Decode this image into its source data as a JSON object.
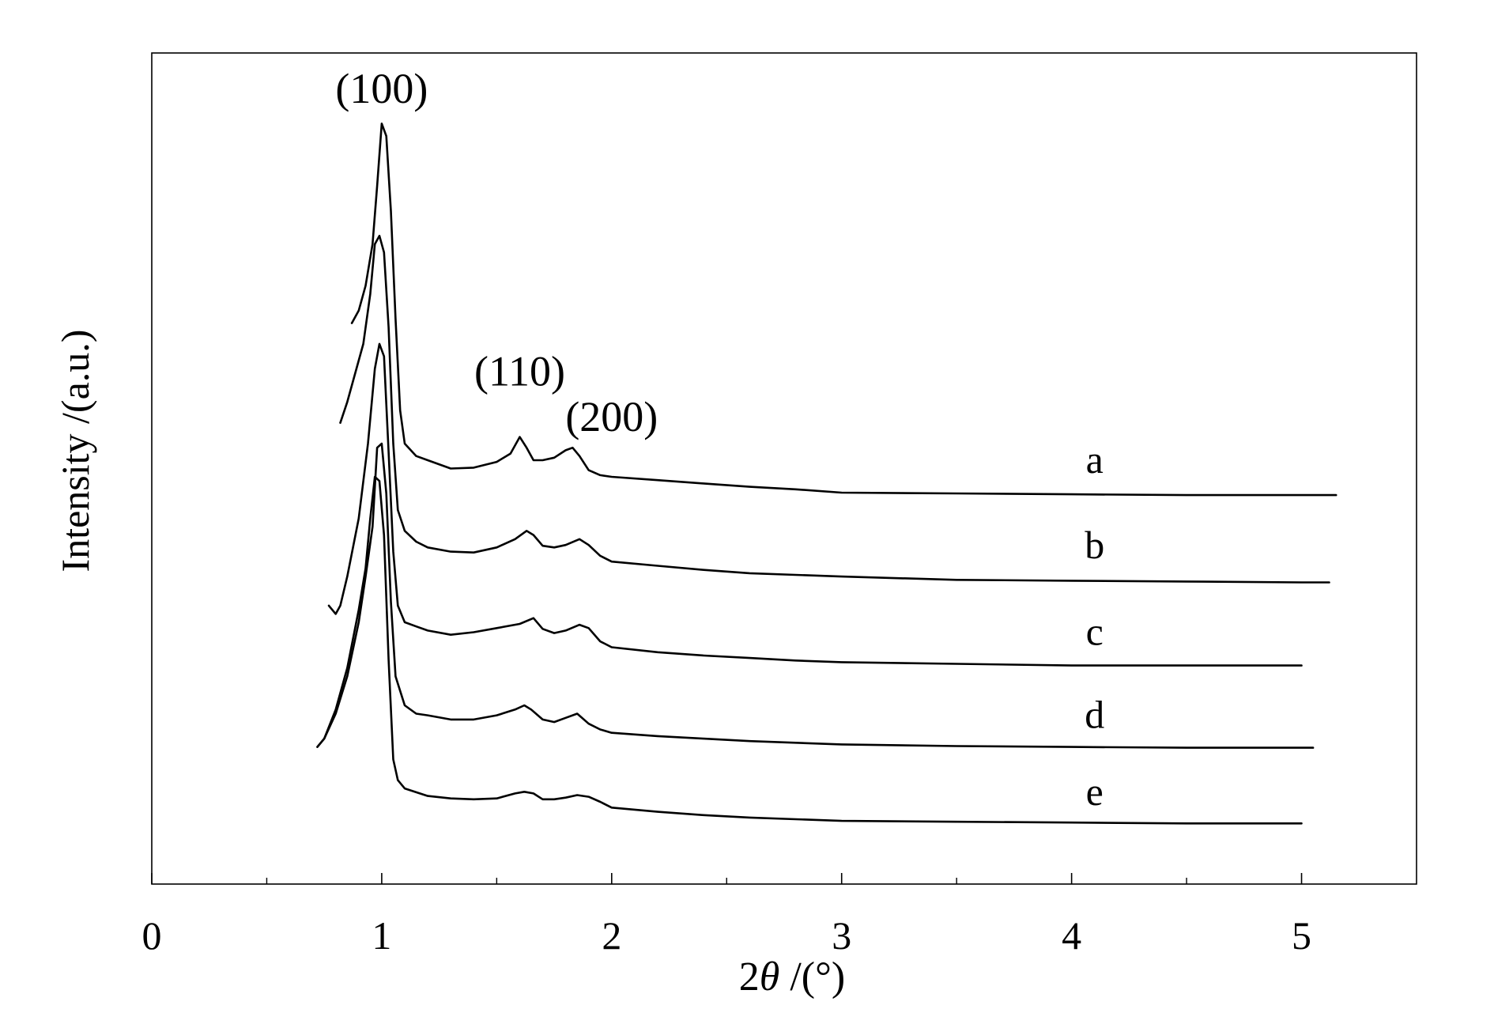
{
  "chart_data": {
    "type": "line",
    "title": "",
    "xlabel_prefix": "2",
    "xlabel_theta": "θ",
    "xlabel_suffix": " /(°)",
    "ylabel": "Intensity /(a.u.)",
    "xlim": [
      0,
      5.5
    ],
    "xticks": [
      0,
      1,
      2,
      3,
      4,
      5
    ],
    "xtick_labels": [
      "0",
      "1",
      "2",
      "3",
      "4",
      "5"
    ],
    "xminor_ticks": [
      0.5,
      1.5,
      2.5,
      3.5,
      4.5
    ],
    "ylim": [
      0,
      100
    ],
    "yticks_shown": false,
    "grid": false,
    "legend": "none",
    "annotations": [
      {
        "text": "(100)",
        "x": 1.0,
        "y": 94
      },
      {
        "text": "(110)",
        "x": 1.6,
        "y": 60
      },
      {
        "text": "(200)",
        "x": 2.0,
        "y": 54.5
      }
    ],
    "series": [
      {
        "name": "a",
        "x": [
          0.87,
          0.9,
          0.93,
          0.96,
          0.98,
          1.0,
          1.02,
          1.04,
          1.06,
          1.08,
          1.1,
          1.15,
          1.2,
          1.3,
          1.4,
          1.5,
          1.56,
          1.6,
          1.63,
          1.66,
          1.7,
          1.75,
          1.8,
          1.83,
          1.86,
          1.9,
          1.95,
          2.0,
          2.2,
          2.4,
          2.6,
          2.8,
          3.0,
          3.5,
          4.0,
          4.5,
          5.0,
          5.15
        ],
        "values": [
          67.5,
          69,
          72,
          77,
          84,
          91.5,
          90,
          81,
          68,
          57,
          53,
          51.5,
          51,
          50,
          50.1,
          50.8,
          51.8,
          53.8,
          52.5,
          51,
          51,
          51.3,
          52.2,
          52.5,
          51.5,
          49.8,
          49.2,
          49,
          48.6,
          48.2,
          47.8,
          47.5,
          47.1,
          47,
          46.9,
          46.8,
          46.8,
          46.8
        ]
      },
      {
        "name": "b",
        "x": [
          0.82,
          0.85,
          0.88,
          0.92,
          0.95,
          0.97,
          0.99,
          1.01,
          1.03,
          1.05,
          1.07,
          1.1,
          1.15,
          1.2,
          1.3,
          1.4,
          1.5,
          1.58,
          1.63,
          1.66,
          1.7,
          1.75,
          1.8,
          1.86,
          1.9,
          1.95,
          2.0,
          2.2,
          2.4,
          2.6,
          2.8,
          3.0,
          3.5,
          4.0,
          4.5,
          5.0,
          5.12
        ],
        "values": [
          55.5,
          58,
          61,
          65,
          71,
          77,
          78,
          76,
          67,
          53,
          45,
          42.5,
          41.2,
          40.5,
          40,
          39.9,
          40.5,
          41.5,
          42.5,
          42,
          40.7,
          40.5,
          40.8,
          41.5,
          40.8,
          39.5,
          38.8,
          38.3,
          37.8,
          37.4,
          37.2,
          37,
          36.6,
          36.5,
          36.4,
          36.3,
          36.3
        ]
      },
      {
        "name": "c",
        "x": [
          0.77,
          0.8,
          0.82,
          0.85,
          0.9,
          0.94,
          0.97,
          0.99,
          1.01,
          1.03,
          1.05,
          1.07,
          1.1,
          1.15,
          1.2,
          1.3,
          1.4,
          1.5,
          1.6,
          1.66,
          1.7,
          1.75,
          1.8,
          1.86,
          1.9,
          1.95,
          2.0,
          2.2,
          2.4,
          2.6,
          2.8,
          3.0,
          3.5,
          4.0,
          4.5,
          5.0
        ],
        "values": [
          33.5,
          32.5,
          33.5,
          37,
          44,
          53,
          62,
          65,
          63.5,
          52,
          40,
          33.5,
          31.5,
          31,
          30.5,
          30,
          30.3,
          30.8,
          31.3,
          32,
          30.7,
          30.2,
          30.5,
          31.2,
          30.8,
          29.2,
          28.5,
          27.9,
          27.5,
          27.2,
          26.9,
          26.7,
          26.5,
          26.3,
          26.3,
          26.3
        ]
      },
      {
        "name": "d",
        "x": [
          0.72,
          0.75,
          0.8,
          0.85,
          0.9,
          0.93,
          0.96,
          0.98,
          1.0,
          1.02,
          1.04,
          1.06,
          1.1,
          1.15,
          1.2,
          1.3,
          1.4,
          1.5,
          1.58,
          1.62,
          1.65,
          1.7,
          1.75,
          1.8,
          1.85,
          1.9,
          1.95,
          2.0,
          2.2,
          2.4,
          2.6,
          2.8,
          3.0,
          3.5,
          4.0,
          4.5,
          5.05
        ],
        "values": [
          16.5,
          17.5,
          20.5,
          25,
          31.5,
          37,
          43,
          52.5,
          53,
          47,
          34,
          25,
          21.5,
          20.5,
          20.3,
          19.8,
          19.8,
          20.3,
          21,
          21.5,
          21,
          19.8,
          19.5,
          20,
          20.5,
          19.3,
          18.6,
          18.2,
          17.8,
          17.5,
          17.2,
          17,
          16.8,
          16.6,
          16.5,
          16.4,
          16.4
        ]
      },
      {
        "name": "e",
        "x": [
          0.72,
          0.75,
          0.8,
          0.85,
          0.9,
          0.93,
          0.95,
          0.97,
          0.99,
          1.01,
          1.03,
          1.05,
          1.07,
          1.1,
          1.2,
          1.3,
          1.4,
          1.5,
          1.58,
          1.62,
          1.66,
          1.7,
          1.75,
          1.8,
          1.85,
          1.9,
          1.95,
          2.0,
          2.2,
          2.4,
          2.6,
          2.8,
          3.0,
          3.5,
          4.0,
          4.5,
          5.0
        ],
        "values": [
          16.5,
          17.5,
          21,
          26,
          33,
          38,
          44,
          49,
          48.5,
          42,
          27,
          15,
          12.5,
          11.5,
          10.6,
          10.3,
          10.2,
          10.3,
          10.9,
          11.1,
          10.9,
          10.2,
          10.2,
          10.4,
          10.7,
          10.5,
          9.9,
          9.2,
          8.7,
          8.3,
          8,
          7.8,
          7.6,
          7.5,
          7.4,
          7.3,
          7.3
        ]
      }
    ],
    "series_labels": [
      {
        "text": "a",
        "x": 4.1,
        "y": 49.5
      },
      {
        "text": "b",
        "x": 4.1,
        "y": 39.2
      },
      {
        "text": "c",
        "x": 4.1,
        "y": 28.8
      },
      {
        "text": "d",
        "x": 4.1,
        "y": 18.8
      },
      {
        "text": "e",
        "x": 4.1,
        "y": 9.5
      }
    ],
    "line_color": "#000000"
  }
}
